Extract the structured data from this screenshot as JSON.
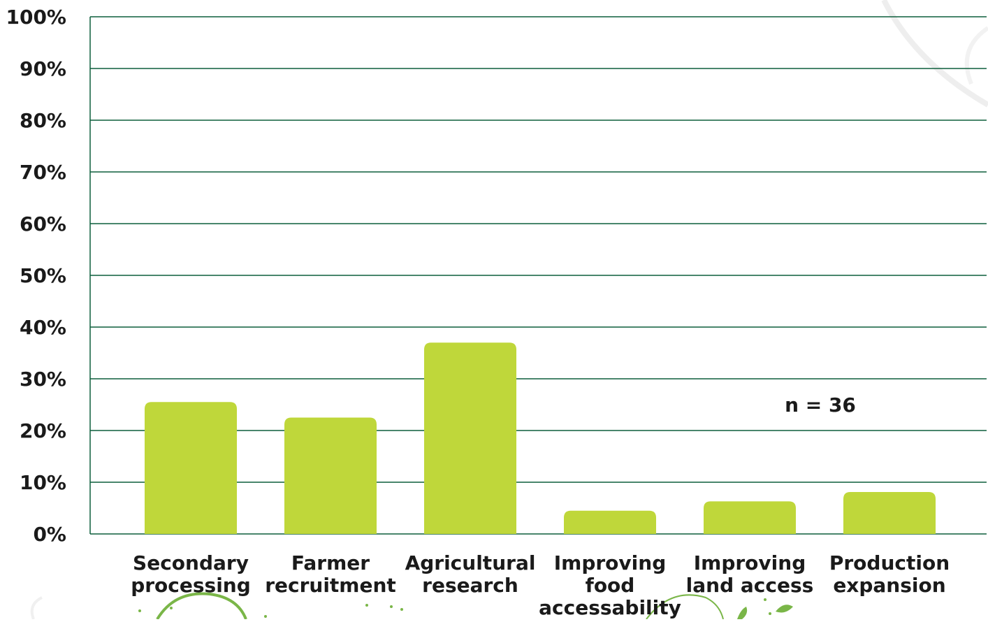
{
  "chart_data": {
    "type": "bar",
    "categories": [
      [
        "Secondary",
        "processing"
      ],
      [
        "Farmer",
        "recruitment"
      ],
      [
        "Agricultural",
        "research"
      ],
      [
        "Improving",
        "food",
        "accessability"
      ],
      [
        "Improving",
        "land access"
      ],
      [
        "Production",
        "expansion"
      ]
    ],
    "values": [
      25.5,
      22.5,
      37,
      4.5,
      6.3,
      8.1
    ],
    "ylim": [
      0,
      100
    ],
    "yticks": [
      "0%",
      "10%",
      "20%",
      "30%",
      "40%",
      "50%",
      "60%",
      "70%",
      "80%",
      "90%",
      "100%"
    ],
    "annotation": "n = 36",
    "grid": true,
    "bar_color": "#bfd73a",
    "grid_color": "#0d5f3c",
    "decoration_color": "#7ab648"
  }
}
